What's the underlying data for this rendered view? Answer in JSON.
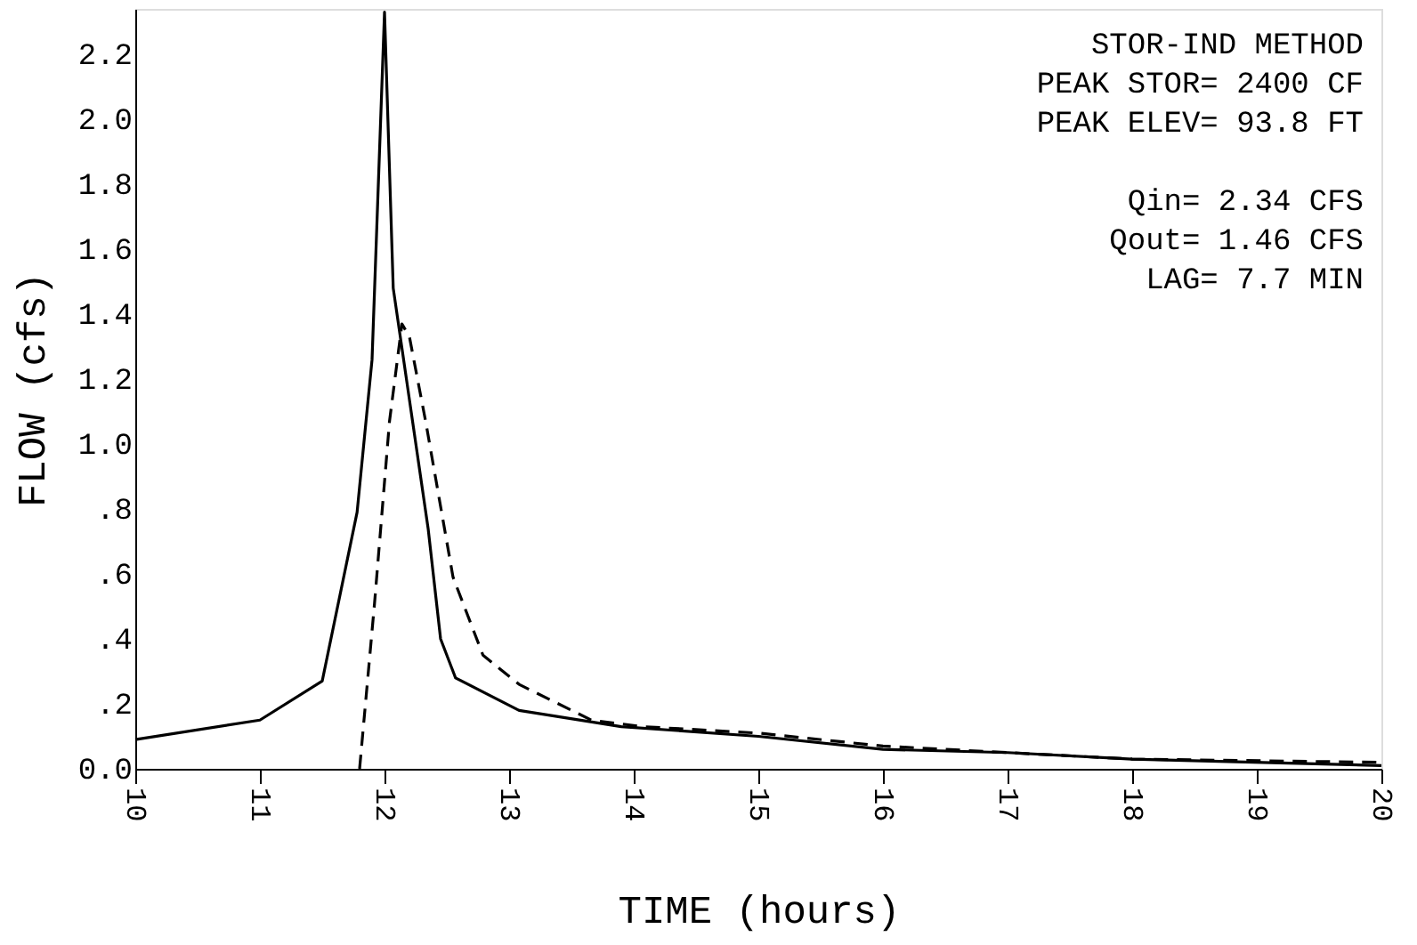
{
  "chart_data": {
    "type": "line",
    "xlabel": "TIME (hours)",
    "ylabel": "FLOW (cfs)",
    "annotations": [
      "STOR-IND METHOD",
      "PEAK STOR= 2400 CF",
      "PEAK ELEV= 93.8 FT",
      "Qin= 2.34 CFS",
      "Qout= 1.46 CFS",
      "LAG= 7.7 MIN"
    ],
    "xlim": [
      10,
      20
    ],
    "xticks": [
      10,
      11,
      12,
      13,
      14,
      15,
      16,
      17,
      18,
      19,
      20
    ],
    "ylim": [
      0,
      2.34
    ],
    "yticks": [
      {
        "value": 0,
        "label": "0.0"
      },
      {
        "value": 0.2,
        "label": ".2"
      },
      {
        "value": 0.4,
        "label": ".4"
      },
      {
        "value": 0.6,
        "label": ".6"
      },
      {
        "value": 0.8,
        "label": ".8"
      },
      {
        "value": 1.0,
        "label": "1.0"
      },
      {
        "value": 1.2,
        "label": "1.2"
      },
      {
        "value": 1.4,
        "label": "1.4"
      },
      {
        "value": 1.6,
        "label": "1.6"
      },
      {
        "value": 1.8,
        "label": "1.8"
      },
      {
        "value": 2.0,
        "label": "2.0"
      },
      {
        "value": 2.2,
        "label": "2.2"
      }
    ],
    "grid": false,
    "legend": false,
    "marker": "none",
    "series": [
      {
        "color": "#000000",
        "line_style": "solid",
        "x": [
          10,
          11.0,
          11.5,
          11.78,
          11.9,
          12.0,
          12.07,
          12.35,
          12.45,
          12.57,
          13.08,
          13.9,
          15,
          16,
          17,
          18,
          20
        ],
        "values": [
          0.09,
          0.15,
          0.27,
          0.79,
          1.26,
          2.33,
          1.48,
          0.74,
          0.4,
          0.28,
          0.18,
          0.13,
          0.1,
          0.06,
          0.05,
          0.03,
          0.01
        ]
      },
      {
        "color": "#000000",
        "line_style": "dashed",
        "x": [
          11.8,
          11.92,
          12.04,
          12.14,
          12.2,
          12.33,
          12.55,
          12.79,
          13.08,
          13.66,
          14.07,
          15,
          16,
          17,
          18,
          20
        ],
        "values": [
          0,
          0.51,
          1.07,
          1.37,
          1.33,
          1.07,
          0.59,
          0.35,
          0.26,
          0.15,
          0.13,
          0.11,
          0.07,
          0.05,
          0.03,
          0.02
        ]
      }
    ]
  }
}
